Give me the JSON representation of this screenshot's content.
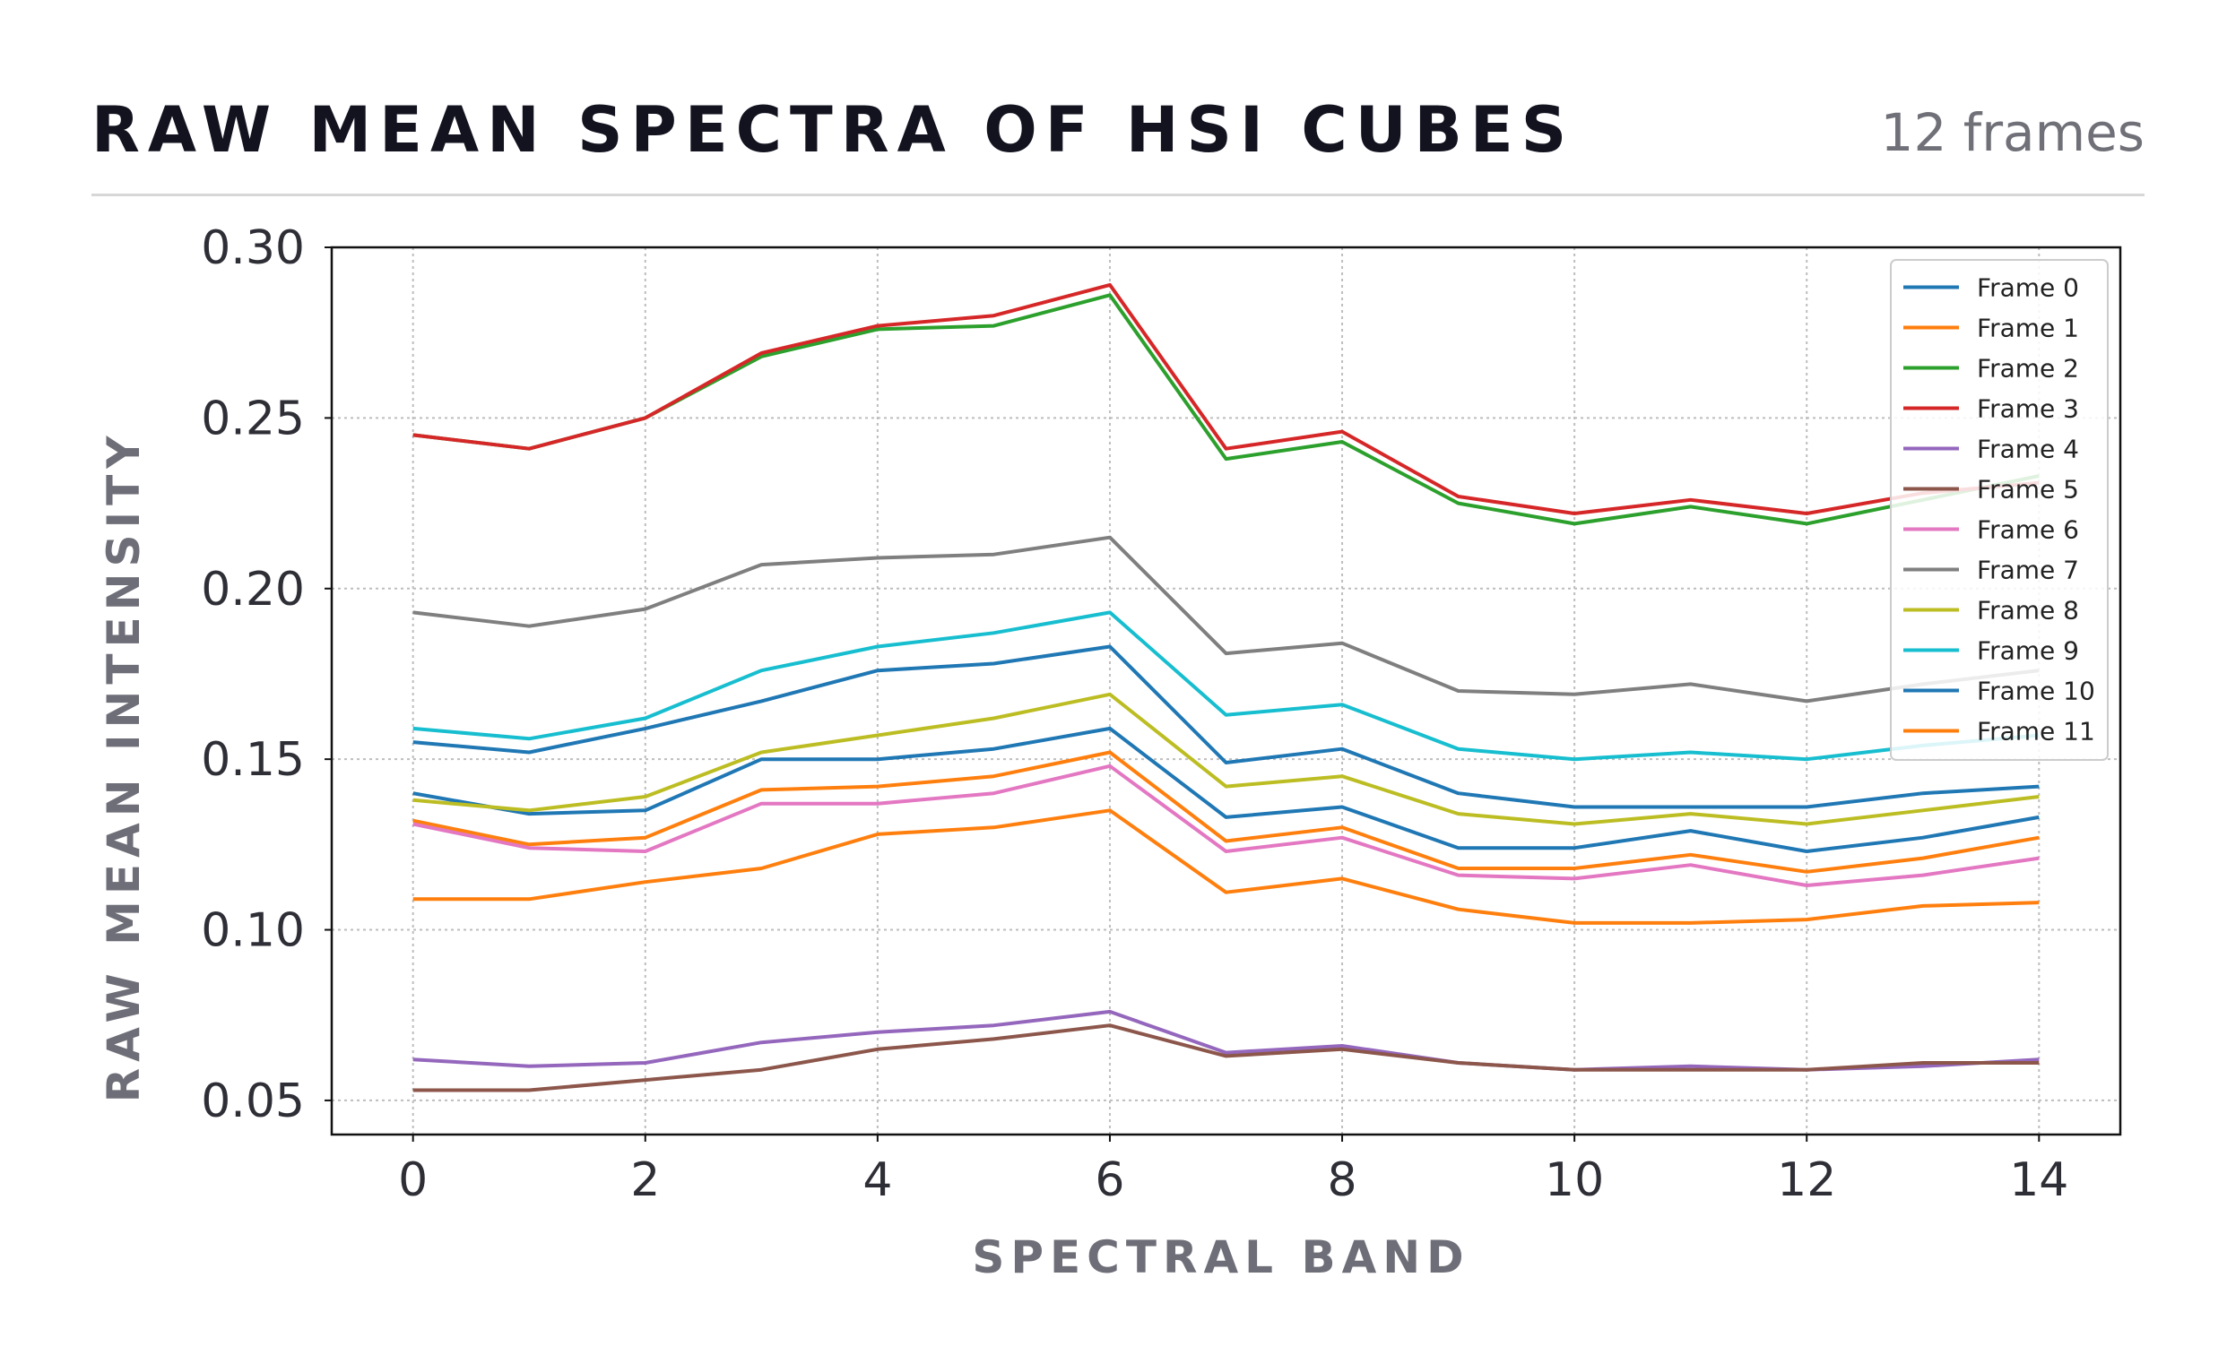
{
  "header": {
    "title": "RAW MEAN SPECTRA OF HSI CUBES",
    "subtitle": "12 frames"
  },
  "chart_data": {
    "type": "line",
    "xlabel": "SPECTRAL BAND",
    "ylabel": "RAW MEAN INTENSITY",
    "xlim": [
      -0.7,
      14.7
    ],
    "ylim": [
      0.04,
      0.3
    ],
    "xticks": [
      0,
      2,
      4,
      6,
      8,
      10,
      12,
      14
    ],
    "yticks": [
      0.05,
      0.1,
      0.15,
      0.2,
      0.25,
      0.3
    ],
    "ytick_labels": [
      "0.05",
      "0.10",
      "0.15",
      "0.20",
      "0.25",
      "0.30"
    ],
    "grid": true,
    "legend_position": "top-right",
    "x": [
      0,
      1,
      2,
      3,
      4,
      5,
      6,
      7,
      8,
      9,
      10,
      11,
      12,
      13,
      14
    ],
    "series": [
      {
        "name": "Frame 0",
        "color": "#1f77b4",
        "values": [
          0.14,
          0.134,
          0.135,
          0.15,
          0.15,
          0.153,
          0.159,
          0.133,
          0.136,
          0.124,
          0.124,
          0.129,
          0.123,
          0.127,
          0.133
        ]
      },
      {
        "name": "Frame 1",
        "color": "#ff7f0e",
        "values": [
          0.132,
          0.125,
          0.127,
          0.141,
          0.142,
          0.145,
          0.152,
          0.126,
          0.13,
          0.118,
          0.118,
          0.122,
          0.117,
          0.121,
          0.127
        ]
      },
      {
        "name": "Frame 2",
        "color": "#2ca02c",
        "values": [
          0.245,
          0.241,
          0.25,
          0.268,
          0.276,
          0.277,
          0.286,
          0.238,
          0.243,
          0.225,
          0.219,
          0.224,
          0.219,
          0.226,
          0.233
        ]
      },
      {
        "name": "Frame 3",
        "color": "#d62728",
        "values": [
          0.245,
          0.241,
          0.25,
          0.269,
          0.277,
          0.28,
          0.289,
          0.241,
          0.246,
          0.227,
          0.222,
          0.226,
          0.222,
          0.228,
          0.231
        ]
      },
      {
        "name": "Frame 4",
        "color": "#9467bd",
        "values": [
          0.062,
          0.06,
          0.061,
          0.067,
          0.07,
          0.072,
          0.076,
          0.064,
          0.066,
          0.061,
          0.059,
          0.06,
          0.059,
          0.06,
          0.062
        ]
      },
      {
        "name": "Frame 5",
        "color": "#8c564b",
        "values": [
          0.053,
          0.053,
          0.056,
          0.059,
          0.065,
          0.068,
          0.072,
          0.063,
          0.065,
          0.061,
          0.059,
          0.059,
          0.059,
          0.061,
          0.061
        ]
      },
      {
        "name": "Frame 6",
        "color": "#e377c2",
        "values": [
          0.131,
          0.124,
          0.123,
          0.137,
          0.137,
          0.14,
          0.148,
          0.123,
          0.127,
          0.116,
          0.115,
          0.119,
          0.113,
          0.116,
          0.121
        ]
      },
      {
        "name": "Frame 7",
        "color": "#7f7f7f",
        "values": [
          0.193,
          0.189,
          0.194,
          0.207,
          0.209,
          0.21,
          0.215,
          0.181,
          0.184,
          0.17,
          0.169,
          0.172,
          0.167,
          0.172,
          0.176
        ]
      },
      {
        "name": "Frame 8",
        "color": "#bcbd22",
        "values": [
          0.138,
          0.135,
          0.139,
          0.152,
          0.157,
          0.162,
          0.169,
          0.142,
          0.145,
          0.134,
          0.131,
          0.134,
          0.131,
          0.135,
          0.139
        ]
      },
      {
        "name": "Frame 9",
        "color": "#17becf",
        "values": [
          0.159,
          0.156,
          0.162,
          0.176,
          0.183,
          0.187,
          0.193,
          0.163,
          0.166,
          0.153,
          0.15,
          0.152,
          0.15,
          0.154,
          0.157
        ]
      },
      {
        "name": "Frame 10",
        "color": "#1f77b4",
        "values": [
          0.155,
          0.152,
          0.159,
          0.167,
          0.176,
          0.178,
          0.183,
          0.149,
          0.153,
          0.14,
          0.136,
          0.136,
          0.136,
          0.14,
          0.142
        ]
      },
      {
        "name": "Frame 11",
        "color": "#ff7f0e",
        "values": [
          0.109,
          0.109,
          0.114,
          0.118,
          0.128,
          0.13,
          0.135,
          0.111,
          0.115,
          0.106,
          0.102,
          0.102,
          0.103,
          0.107,
          0.108
        ]
      }
    ]
  }
}
